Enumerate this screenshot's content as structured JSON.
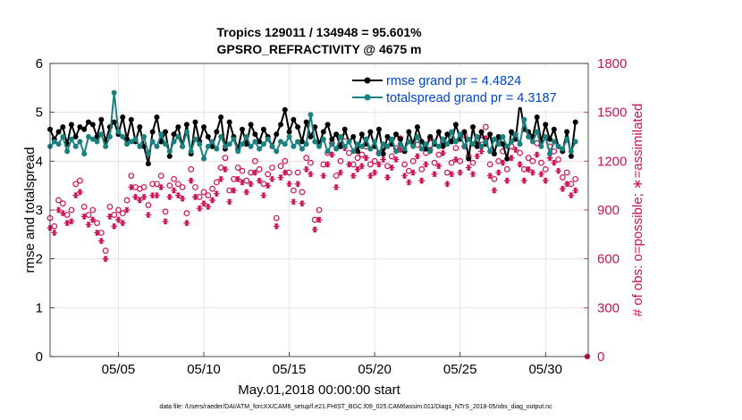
{
  "chart_data": {
    "type": "line",
    "title": "Tropics 129011 / 134948 = 95.601%",
    "subtitle": "GPSRO_REFRACTIVITY @ 4675 m",
    "xlabel": "May.01,2018 00:00:00 start",
    "ylabel_left": "rmse and totalspread",
    "ylabel_right": "# of obs: o=possible; ∗=assimilated",
    "footnote": "data file: /Users/raeder/DAI/ATM_forcXX/CAM6_setup/f.e21.FHIST_BGC.f09_025.CAM6assim.011/Diags_NTrS_2018-05/obs_diag_output.nc",
    "xlim": [
      1,
      32.5
    ],
    "ylim_left": [
      0,
      6
    ],
    "ylim_right": [
      0,
      1800
    ],
    "x_ticks": [
      5,
      10,
      15,
      20,
      25,
      30
    ],
    "x_tick_labels": [
      "05/05",
      "05/10",
      "05/15",
      "05/20",
      "05/25",
      "05/30"
    ],
    "y_left_ticks": [
      "0",
      "1",
      "2",
      "3",
      "4",
      "5",
      "6"
    ],
    "y_right_ticks": [
      "0",
      "300",
      "600",
      "900",
      "1200",
      "1500",
      "1800"
    ],
    "x": [
      1.0,
      1.25,
      1.5,
      1.75,
      2.0,
      2.25,
      2.5,
      2.75,
      3.0,
      3.25,
      3.5,
      3.75,
      4.0,
      4.25,
      4.5,
      4.75,
      5.0,
      5.25,
      5.5,
      5.75,
      6.0,
      6.25,
      6.5,
      6.75,
      7.0,
      7.25,
      7.5,
      7.75,
      8.0,
      8.25,
      8.5,
      8.75,
      9.0,
      9.25,
      9.5,
      9.75,
      10.0,
      10.25,
      10.5,
      10.75,
      11.0,
      11.25,
      11.5,
      11.75,
      12.0,
      12.25,
      12.5,
      12.75,
      13.0,
      13.25,
      13.5,
      13.75,
      14.0,
      14.25,
      14.5,
      14.75,
      15.0,
      15.25,
      15.5,
      15.75,
      16.0,
      16.25,
      16.5,
      16.75,
      17.0,
      17.25,
      17.5,
      17.75,
      18.0,
      18.25,
      18.5,
      18.75,
      19.0,
      19.25,
      19.5,
      19.75,
      20.0,
      20.25,
      20.5,
      20.75,
      21.0,
      21.25,
      21.5,
      21.75,
      22.0,
      22.25,
      22.5,
      22.75,
      23.0,
      23.25,
      23.5,
      23.75,
      24.0,
      24.25,
      24.5,
      24.75,
      25.0,
      25.25,
      25.5,
      25.75,
      26.0,
      26.25,
      26.5,
      26.75,
      27.0,
      27.25,
      27.5,
      27.75,
      28.0,
      28.25,
      28.5,
      28.75,
      29.0,
      29.25,
      29.5,
      29.75,
      30.0,
      30.25,
      30.5,
      30.75,
      31.0,
      31.25,
      31.5,
      31.75
    ],
    "series": [
      {
        "name": "rmse",
        "legend": "rmse grand pr = 4.4824",
        "color": "#000000",
        "axis": "left",
        "values": [
          4.65,
          4.45,
          4.6,
          4.7,
          4.35,
          4.75,
          4.5,
          4.7,
          4.65,
          4.8,
          4.75,
          4.5,
          4.85,
          4.4,
          4.7,
          4.8,
          4.55,
          4.9,
          4.45,
          4.85,
          4.4,
          4.7,
          4.3,
          3.95,
          4.6,
          4.9,
          4.4,
          4.6,
          4.1,
          4.55,
          4.7,
          4.3,
          4.75,
          4.15,
          4.8,
          4.4,
          4.7,
          4.5,
          4.3,
          4.6,
          4.9,
          4.25,
          4.8,
          4.5,
          4.25,
          4.65,
          4.35,
          4.75,
          4.55,
          4.4,
          4.65,
          4.5,
          4.3,
          4.55,
          4.75,
          5.05,
          4.6,
          4.85,
          4.7,
          4.4,
          4.8,
          4.5,
          4.7,
          4.35,
          4.6,
          4.75,
          4.45,
          4.55,
          4.3,
          4.65,
          4.4,
          4.5,
          4.2,
          4.55,
          4.35,
          4.6,
          4.3,
          4.65,
          4.15,
          4.5,
          4.35,
          4.55,
          4.45,
          4.2,
          4.6,
          4.35,
          4.7,
          4.4,
          4.25,
          4.5,
          4.35,
          4.6,
          4.3,
          4.55,
          4.4,
          4.75,
          4.45,
          4.6,
          4.05,
          4.7,
          4.3,
          4.6,
          4.35,
          4.55,
          4.15,
          4.5,
          4.35,
          4.05,
          4.6,
          4.45,
          5.2,
          4.65,
          4.6,
          4.5,
          4.9,
          4.4,
          4.75,
          4.45,
          4.65,
          4.3,
          4.2,
          4.6,
          4.1,
          4.8
        ]
      },
      {
        "name": "totalspread",
        "legend": "totalspread grand pr = 4.3187",
        "color": "#1a8080",
        "axis": "left",
        "values": [
          4.3,
          4.4,
          4.35,
          4.5,
          4.2,
          4.45,
          4.3,
          4.4,
          4.15,
          4.5,
          4.45,
          4.4,
          4.55,
          4.3,
          4.5,
          5.4,
          4.6,
          4.5,
          4.35,
          4.4,
          4.45,
          4.3,
          4.5,
          4.15,
          4.4,
          4.3,
          4.55,
          4.35,
          4.2,
          4.4,
          4.5,
          4.3,
          4.6,
          4.2,
          4.45,
          4.35,
          4.05,
          4.3,
          4.4,
          4.25,
          4.5,
          4.3,
          4.35,
          4.45,
          4.2,
          4.35,
          4.5,
          4.3,
          4.4,
          4.25,
          4.35,
          4.45,
          4.3,
          4.2,
          4.4,
          4.35,
          4.5,
          4.3,
          4.4,
          4.25,
          4.35,
          4.95,
          4.4,
          4.3,
          4.45,
          4.2,
          4.35,
          4.25,
          4.5,
          4.3,
          4.4,
          4.2,
          4.35,
          4.3,
          4.45,
          4.25,
          4.4,
          4.15,
          4.35,
          4.3,
          4.45,
          4.2,
          4.35,
          4.25,
          4.4,
          4.3,
          4.5,
          4.25,
          4.35,
          4.2,
          4.4,
          4.3,
          4.45,
          4.35,
          4.6,
          4.4,
          4.55,
          4.3,
          4.45,
          4.35,
          4.5,
          4.3,
          4.4,
          4.2,
          4.45,
          4.35,
          4.5,
          4.3,
          4.4,
          4.55,
          4.35,
          4.85,
          4.5,
          4.4,
          4.6,
          4.3,
          4.5,
          4.15,
          4.4,
          4.3,
          4.25,
          4.45,
          4.2,
          4.4
        ]
      },
      {
        "name": "possible",
        "legend": "o = possible",
        "color": "#cc1155",
        "axis": "right",
        "marker": "circle",
        "values": [
          850,
          800,
          960,
          940,
          870,
          900,
          1060,
          1080,
          920,
          870,
          900,
          820,
          760,
          650,
          920,
          870,
          900,
          880,
          960,
          1110,
          1040,
          1030,
          1040,
          930,
          1060,
          1060,
          1110,
          890,
          1050,
          1090,
          1060,
          1040,
          880,
          1150,
          1040,
          980,
          1010,
          990,
          1030,
          1070,
          1160,
          1220,
          1020,
          1090,
          1160,
          1140,
          1080,
          1130,
          1200,
          1150,
          1060,
          1120,
          1160,
          850,
          1170,
          1200,
          1130,
          1020,
          1130,
          1010,
          1220,
          1190,
          840,
          900,
          1180,
          1250,
          1310,
          1110,
          1200,
          1350,
          1250,
          1180,
          1220,
          1240,
          1290,
          1180,
          1200,
          1250,
          1280,
          1170,
          1230,
          1280,
          1340,
          1180,
          1140,
          1200,
          1300,
          1150,
          1250,
          1340,
          1190,
          1240,
          1320,
          1130,
          1190,
          1280,
          1200,
          1360,
          1230,
          1190,
          1300,
          1330,
          1410,
          1180,
          1090,
          1200,
          1260,
          1150,
          1290,
          1340,
          1250,
          1150,
          1220,
          1200,
          1310,
          1190,
          1150,
          1290,
          1260,
          1210,
          1100,
          1130,
          1060,
          1090
        ]
      },
      {
        "name": "assimilated",
        "legend": "∗ = assimilated",
        "color": "#cc1155",
        "axis": "right",
        "marker": "asterisk",
        "values": [
          790,
          760,
          900,
          880,
          820,
          830,
          990,
          1010,
          860,
          810,
          840,
          760,
          710,
          600,
          860,
          800,
          840,
          820,
          900,
          1040,
          980,
          960,
          980,
          870,
          990,
          990,
          1040,
          830,
          980,
          1020,
          990,
          970,
          820,
          1080,
          980,
          910,
          940,
          920,
          960,
          1000,
          1090,
          1150,
          950,
          1020,
          1090,
          1070,
          1010,
          1060,
          1130,
          1080,
          990,
          1050,
          1090,
          800,
          1100,
          1130,
          1060,
          950,
          1060,
          940,
          1150,
          1120,
          780,
          840,
          1110,
          1180,
          1240,
          1040,
          1130,
          1280,
          1180,
          1110,
          1150,
          1170,
          1220,
          1110,
          1130,
          1180,
          1210,
          1100,
          1160,
          1210,
          1270,
          1110,
          1070,
          1130,
          1230,
          1080,
          1180,
          1270,
          1120,
          1170,
          1250,
          1060,
          1120,
          1210,
          1130,
          1290,
          1160,
          1120,
          1230,
          1260,
          1340,
          1110,
          1020,
          1130,
          1190,
          1080,
          1220,
          1270,
          1180,
          1080,
          1150,
          1130,
          1240,
          1120,
          1080,
          1220,
          1190,
          1140,
          1030,
          1060,
          990,
          1020
        ]
      }
    ]
  }
}
